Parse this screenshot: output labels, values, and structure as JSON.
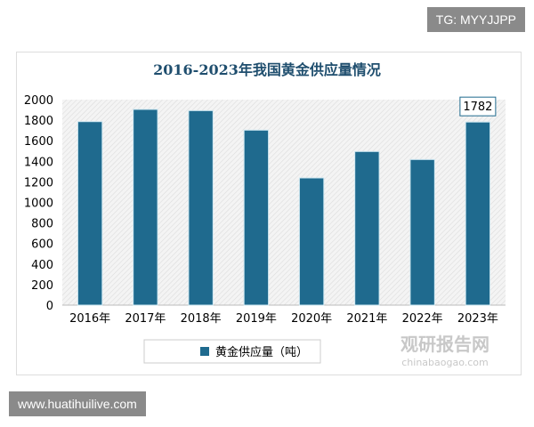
{
  "watermark_top": "TG: MYYJJPP",
  "watermark_bottom": "www.huatihuilive.com",
  "logo": {
    "name": "观研报告网",
    "domain": "chinabaogao.com"
  },
  "chart_data": {
    "type": "bar",
    "title": "2016-2023年我国黄金供应量情况",
    "categories": [
      "2016年",
      "2017年",
      "2018年",
      "2019年",
      "2020年",
      "2021年",
      "2022年",
      "2023年"
    ],
    "series": [
      {
        "name": "黄金供应量（吨）",
        "values": [
          1786,
          1905,
          1893,
          1703,
          1238,
          1495,
          1417,
          1782
        ]
      }
    ],
    "data_labels": [
      {
        "category": "2023年",
        "text": "1782"
      }
    ],
    "ylim": [
      0,
      2000
    ],
    "yticks": [
      0,
      200,
      400,
      600,
      800,
      1000,
      1200,
      1400,
      1600,
      1800,
      2000
    ],
    "grid": false,
    "legend": "bottom",
    "colors": {
      "bar": "#1f6a8e",
      "title": "#1f4e6e"
    }
  }
}
